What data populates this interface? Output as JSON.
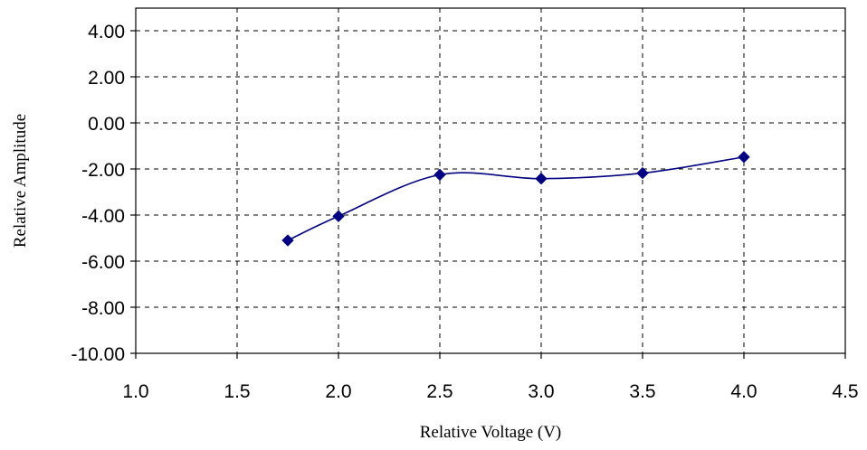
{
  "chart_data": {
    "type": "line",
    "title": "",
    "xlabel": "Relative Voltage (V)",
    "ylabel": "Relative Amplitude",
    "xlim": [
      1.0,
      4.5
    ],
    "ylim": [
      -10.0,
      4.0
    ],
    "x_ticks": [
      "1.0",
      "1.5",
      "2.0",
      "2.5",
      "3.0",
      "3.5",
      "4.0",
      "4.5"
    ],
    "y_ticks": [
      "4.00",
      "2.00",
      "0.00",
      "-2.00",
      "-4.00",
      "-6.00",
      "-8.00",
      "-10.00"
    ],
    "grid": true,
    "legend": "none",
    "series": [
      {
        "color": "#000080",
        "marker": "diamond",
        "x": [
          1.75,
          2.0,
          2.5,
          3.0,
          3.5,
          4.0
        ],
        "y": [
          -5.1,
          -4.05,
          -2.25,
          -2.42,
          -2.18,
          -1.48
        ]
      }
    ]
  }
}
